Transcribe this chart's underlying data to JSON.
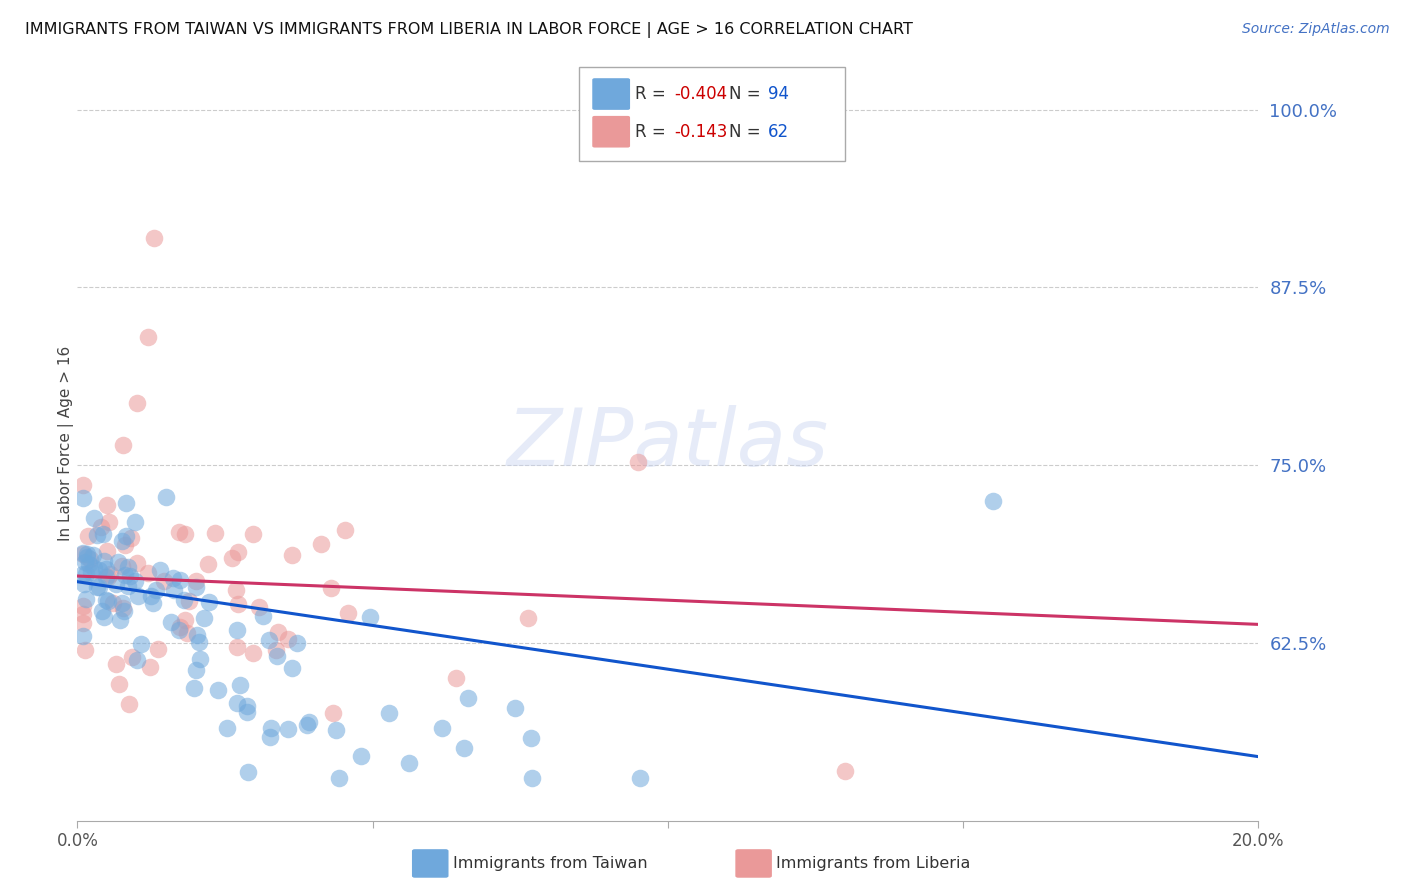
{
  "title": "IMMIGRANTS FROM TAIWAN VS IMMIGRANTS FROM LIBERIA IN LABOR FORCE | AGE > 16 CORRELATION CHART",
  "source": "Source: ZipAtlas.com",
  "ylabel": "In Labor Force | Age > 16",
  "xlim": [
    0.0,
    0.2
  ],
  "ylim": [
    0.5,
    1.03
  ],
  "yticks": [
    0.625,
    0.75,
    0.875,
    1.0
  ],
  "ytick_labels": [
    "62.5%",
    "75.0%",
    "87.5%",
    "100.0%"
  ],
  "xticks": [
    0.0,
    0.05,
    0.1,
    0.15,
    0.2
  ],
  "xtick_labels": [
    "0.0%",
    "",
    "",
    "",
    "20.0%"
  ],
  "taiwan_color": "#6fa8dc",
  "liberia_color": "#ea9999",
  "taiwan_line_color": "#1155cc",
  "liberia_line_color": "#cc3366",
  "taiwan_R": -0.404,
  "taiwan_N": 94,
  "liberia_R": -0.143,
  "liberia_N": 62,
  "watermark": "ZIPatlas",
  "background_color": "#ffffff",
  "legend_R_color": "#cc0000",
  "legend_N_color": "#1155cc",
  "tick_color": "#4472c4",
  "source_color": "#4472c4"
}
